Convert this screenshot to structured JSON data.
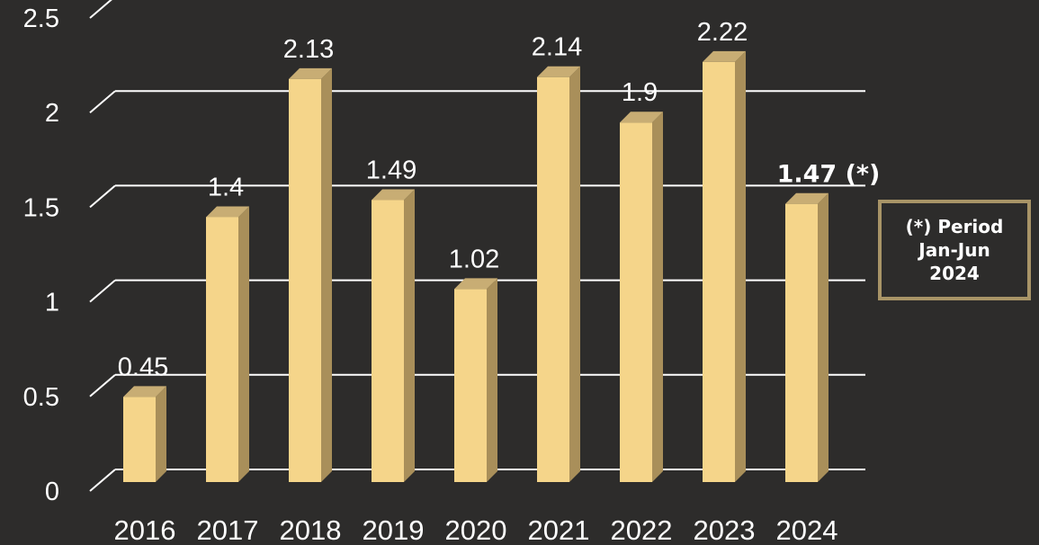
{
  "chart_data": {
    "type": "bar",
    "title": "",
    "xlabel": "",
    "ylabel": "",
    "categories": [
      "2016",
      "2017",
      "2018",
      "2019",
      "2020",
      "2021",
      "2022",
      "2023",
      "2024"
    ],
    "values": [
      0.45,
      1.4,
      2.13,
      1.49,
      1.02,
      2.14,
      1.9,
      2.22,
      1.47
    ],
    "data_labels": [
      "0.45",
      "1.4",
      "2.13",
      "1.49",
      "1.02",
      "2.14",
      "1.9",
      "2.22",
      "1.47 (*)"
    ],
    "y_ticks": [
      "0",
      "0.5",
      "1",
      "1.5",
      "2",
      "2.5"
    ],
    "ylim": [
      0,
      2.5
    ],
    "grid": true,
    "style": "3d-bar",
    "colors": {
      "bar_front": "#f5d58a",
      "bar_side": "#a98f5a",
      "bar_top": "#c8ad74",
      "gridline": "#ffffff",
      "background": "#2d2c2b"
    }
  },
  "note": {
    "text": "(*) Period\nJan-Jun\n2024",
    "border_color": "#a89467"
  }
}
